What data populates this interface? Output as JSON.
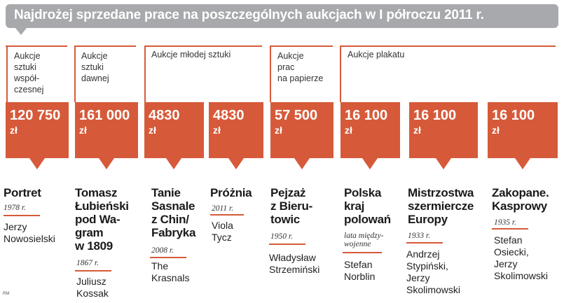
{
  "title": "Najdrożej sprzedane prace na poszczególnych aukcjach w I półroczu 2011 r.",
  "credit": "RM",
  "categories": [
    {
      "label": "Aukcje\nsztuki\nwspół-\nczesnej"
    },
    {
      "label": "Aukcje\nsztuki\ndawnej"
    },
    {
      "label": "Aukcje młodej sztuki"
    },
    {
      "label": "Aukcje\nprac\nna papierze"
    },
    {
      "label": "Aukcje plakatu"
    }
  ],
  "accent_color": "#d65a3a",
  "works": [
    {
      "price": "120 750",
      "currency": "zł",
      "title": "Portret",
      "year": "1978 r.",
      "author": "Jerzy\nNowosielski"
    },
    {
      "price": "161 000",
      "currency": "zł",
      "title": "Tomasz\nŁubieński\npod Wa-\ngram\nw 1809",
      "year": "1867 r.",
      "author": "Juliusz\nKossak"
    },
    {
      "price": "4830",
      "currency": "zł",
      "title": "Tanie\nSasnale\nz Chin/\nFabryka",
      "year": "2008 r.",
      "author": "The\nKrasnals"
    },
    {
      "price": "4830",
      "currency": "zł",
      "title": "Próżnia",
      "year": "2011 r.",
      "author": "Viola\nTycz"
    },
    {
      "price": "57 500",
      "currency": "zł",
      "title": "Pejzaż\nz Bieru-\ntowic",
      "year": "1950 r.",
      "author": "Władysław\nStrzemiński"
    },
    {
      "price": "16 100",
      "currency": "zł",
      "title": "Polska\nkraj\npolowań",
      "year": "lata między-\nwojenne",
      "author": "Stefan\nNorblin"
    },
    {
      "price": "16 100",
      "currency": "zł",
      "title": "Mistrzostwa\nszermiercze\nEuropy",
      "year": "1933 r.",
      "author": "Andrzej\nStypiński,\nJerzy\nSkolimowski"
    },
    {
      "price": "16 100",
      "currency": "zł",
      "title": "Zakopane.\nKasprowy",
      "year": "1935 r.",
      "author": "Stefan\nOsiecki,\nJerzy\nSkolimowski"
    }
  ]
}
